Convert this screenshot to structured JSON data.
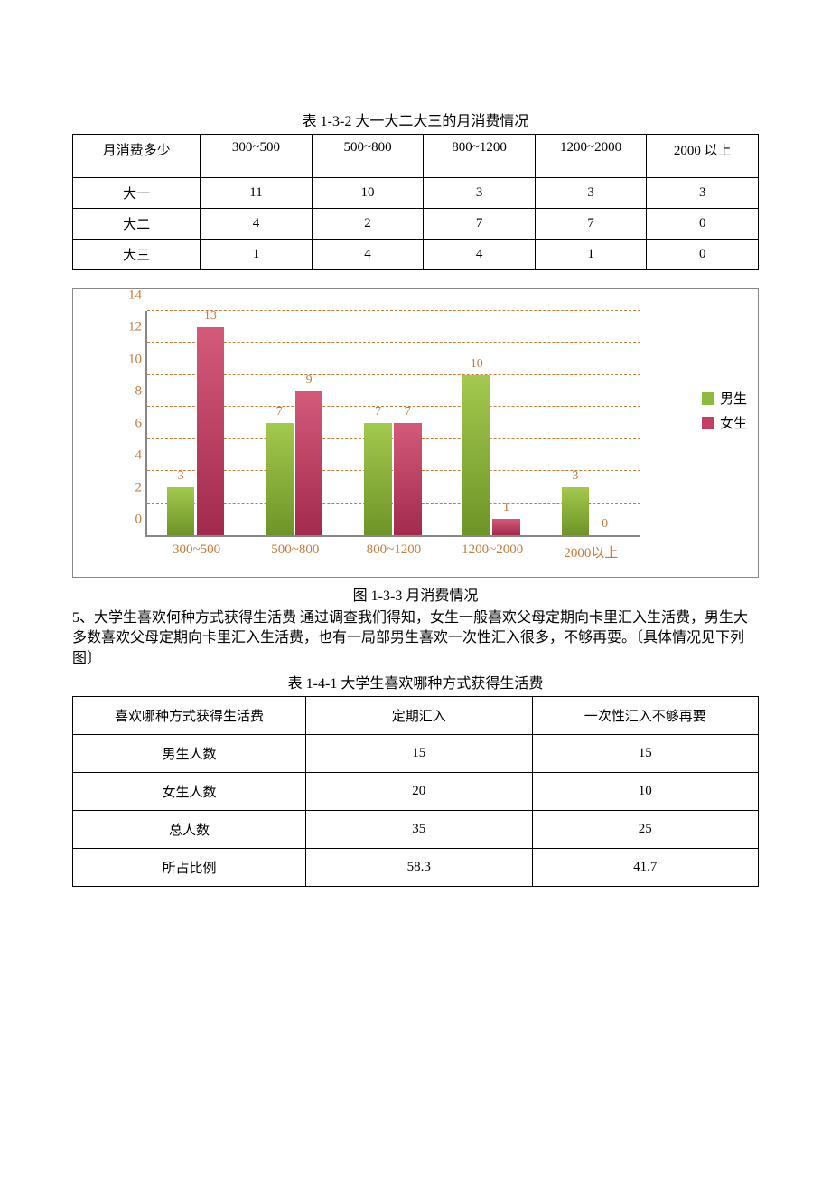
{
  "table1": {
    "title": "表 1-3-2 大一大二大三的月消费情况",
    "headers": [
      "月消费多少",
      "300~500",
      "500~800",
      "800~1200",
      "1200~2000",
      "2000 以上"
    ],
    "rows": [
      [
        "大一",
        "11",
        "10",
        "3",
        "3",
        "3"
      ],
      [
        "大二",
        "4",
        "2",
        "7",
        "7",
        "0"
      ],
      [
        "大三",
        "1",
        "4",
        "4",
        "1",
        "0"
      ]
    ]
  },
  "chart": {
    "type": "bar",
    "categories": [
      "300~500",
      "500~800",
      "800~1200",
      "1200~2000",
      "2000以上"
    ],
    "series": [
      {
        "name": "男生",
        "color_top": "#a3c94e",
        "color_bot": "#6e9428",
        "swatch": "#8fb93f",
        "values": [
          3,
          7,
          7,
          10,
          3
        ]
      },
      {
        "name": "女生",
        "color_top": "#d45a7a",
        "color_bot": "#a22a4d",
        "swatch": "#c23f63",
        "values": [
          13,
          9,
          7,
          1,
          0
        ]
      }
    ],
    "ylim": [
      0,
      14
    ],
    "ytick_step": 2,
    "yticks": [
      0,
      2,
      4,
      6,
      8,
      10,
      12,
      14
    ],
    "grid_color": "#c77a3c",
    "label_color": "#c77a3c",
    "caption": "图 1-3-3 月消费情况"
  },
  "paragraph": {
    "text": "5、大学生喜欢何种方式获得生活费 通过调查我们得知，女生一般喜欢父母定期向卡里汇入生活费，男生大多数喜欢父母定期向卡里汇入生活费，也有一局部男生喜欢一次性汇入很多，不够再要。〔具体情况见下列图〕"
  },
  "table2": {
    "title": "表 1-4-1 大学生喜欢哪种方式获得生活费",
    "headers": [
      "喜欢哪种方式获得生活费",
      "定期汇入",
      "一次性汇入不够再要"
    ],
    "rows": [
      [
        "男生人数",
        "15",
        "15"
      ],
      [
        "女生人数",
        "20",
        "10"
      ],
      [
        "总人数",
        "35",
        "25"
      ],
      [
        "所占比例",
        "58.3",
        "41.7"
      ]
    ]
  }
}
